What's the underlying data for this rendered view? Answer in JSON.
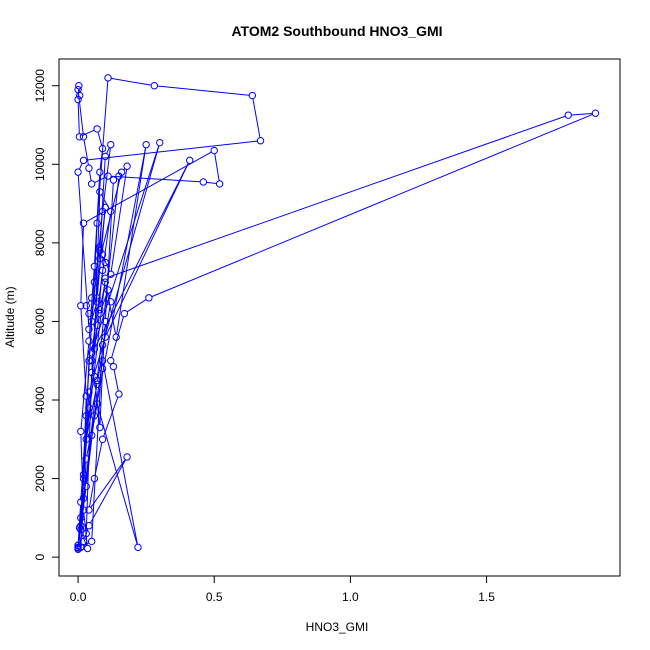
{
  "chart_data": {
    "type": "line",
    "title": "ATOM2 Southbound HNO3_GMI",
    "xlabel": "HNO3_GMI",
    "ylabel": "Altitude (m)",
    "xlim": [
      -0.07,
      1.99
    ],
    "ylim": [
      -480,
      12680
    ],
    "x_ticks": [
      0,
      0.5,
      1,
      1.5
    ],
    "x_tick_labels": [
      "0.0",
      "0.5",
      "1.0",
      "1.5"
    ],
    "y_ticks": [
      0,
      2000,
      4000,
      6000,
      8000,
      10000,
      12000
    ],
    "y_tick_labels": [
      "0",
      "2000",
      "4000",
      "6000",
      "8000",
      "10000",
      "12000"
    ],
    "grid": false,
    "legend": "none",
    "series": [
      {
        "color": "#0000ff",
        "marker": "open-circle",
        "line": "solid",
        "points": [
          [
            0.0,
            230
          ],
          [
            0.01,
            260
          ],
          [
            0.005,
            750
          ],
          [
            0.035,
            220
          ],
          [
            0.02,
            1200
          ],
          [
            0.01,
            3200
          ],
          [
            0.04,
            5500
          ],
          [
            0.06,
            7400
          ],
          [
            0.08,
            9800
          ],
          [
            0.09,
            10400
          ],
          [
            0.07,
            10900
          ],
          [
            0.005,
            10700
          ],
          [
            0.0,
            11650
          ],
          [
            0.003,
            12000
          ],
          [
            0.006,
            11750
          ],
          [
            0.0,
            11900
          ],
          [
            0.02,
            10700
          ],
          [
            0.04,
            9900
          ],
          [
            0.05,
            9500
          ],
          [
            0.11,
            9700
          ],
          [
            0.46,
            9550
          ],
          [
            0.52,
            9500
          ],
          [
            0.5,
            10350
          ],
          [
            0.02,
            8500
          ],
          [
            0.01,
            6400
          ],
          [
            0.03,
            4100
          ],
          [
            0.02,
            2100
          ],
          [
            0.01,
            800
          ],
          [
            0.03,
            600
          ],
          [
            0.05,
            4700
          ],
          [
            0.08,
            7800
          ],
          [
            0.1,
            10200
          ],
          [
            0.12,
            10500
          ],
          [
            0.09,
            8800
          ],
          [
            0.05,
            6000
          ],
          [
            0.03,
            3600
          ],
          [
            0.01,
            1400
          ],
          [
            0.0,
            300
          ],
          [
            0.01,
            700
          ],
          [
            0.04,
            5000
          ],
          [
            0.06,
            7000
          ],
          [
            0.07,
            8500
          ],
          [
            0.11,
            12200
          ],
          [
            0.28,
            12000
          ],
          [
            0.64,
            11750
          ],
          [
            0.67,
            10600
          ],
          [
            0.02,
            10100
          ],
          [
            0.0,
            9800
          ],
          [
            0.04,
            5800
          ],
          [
            0.07,
            6500
          ],
          [
            0.08,
            6300
          ],
          [
            0.1,
            7000
          ],
          [
            0.14,
            5600
          ],
          [
            0.25,
            10500
          ],
          [
            0.03,
            2500
          ],
          [
            0.01,
            250
          ],
          [
            0.05,
            400
          ],
          [
            0.09,
            5400
          ],
          [
            0.3,
            10550
          ],
          [
            0.05,
            5200
          ],
          [
            0.12,
            8800
          ],
          [
            0.08,
            9300
          ],
          [
            0.06,
            5300
          ],
          [
            0.41,
            10100
          ],
          [
            0.1,
            5600
          ],
          [
            0.04,
            4200
          ],
          [
            0.02,
            2000
          ],
          [
            0.0,
            200
          ],
          [
            0.07,
            4500
          ],
          [
            0.15,
            9700
          ],
          [
            0.13,
            9600
          ],
          [
            0.1,
            6000
          ],
          [
            0.09,
            4800
          ],
          [
            0.08,
            3300
          ],
          [
            0.06,
            4600
          ],
          [
            0.05,
            5000
          ],
          [
            0.08,
            6200
          ],
          [
            0.11,
            6800
          ],
          [
            0.12,
            6500
          ],
          [
            0.07,
            4400
          ],
          [
            0.03,
            3000
          ],
          [
            0.1,
            7100
          ],
          [
            1.8,
            11250
          ],
          [
            1.9,
            11300
          ],
          [
            0.26,
            6600
          ],
          [
            0.17,
            6200
          ],
          [
            0.12,
            5000
          ],
          [
            0.13,
            4850
          ],
          [
            0.15,
            4150
          ],
          [
            0.09,
            3000
          ],
          [
            0.06,
            2000
          ],
          [
            0.04,
            1200
          ],
          [
            0.18,
            2550
          ],
          [
            0.04,
            800
          ],
          [
            0.02,
            400
          ],
          [
            0.0,
            250
          ],
          [
            0.03,
            1800
          ],
          [
            0.06,
            3600
          ],
          [
            0.09,
            5000
          ],
          [
            0.22,
            250
          ],
          [
            0.07,
            3900
          ],
          [
            0.05,
            3100
          ],
          [
            0.02,
            1500
          ],
          [
            0.0,
            300
          ],
          [
            0.01,
            1000
          ],
          [
            0.04,
            3800
          ],
          [
            0.07,
            5900
          ],
          [
            0.09,
            7300
          ],
          [
            0.1,
            7500
          ],
          [
            0.09,
            7700
          ],
          [
            0.12,
            7200
          ],
          [
            0.18,
            9950
          ],
          [
            0.16,
            9800
          ],
          [
            0.08,
            7600
          ],
          [
            0.1,
            8900
          ],
          [
            0.07,
            6600
          ],
          [
            0.04,
            6200
          ],
          [
            0.03,
            6400
          ],
          [
            0.05,
            6600
          ],
          [
            0.08,
            7900
          ]
        ]
      }
    ]
  }
}
